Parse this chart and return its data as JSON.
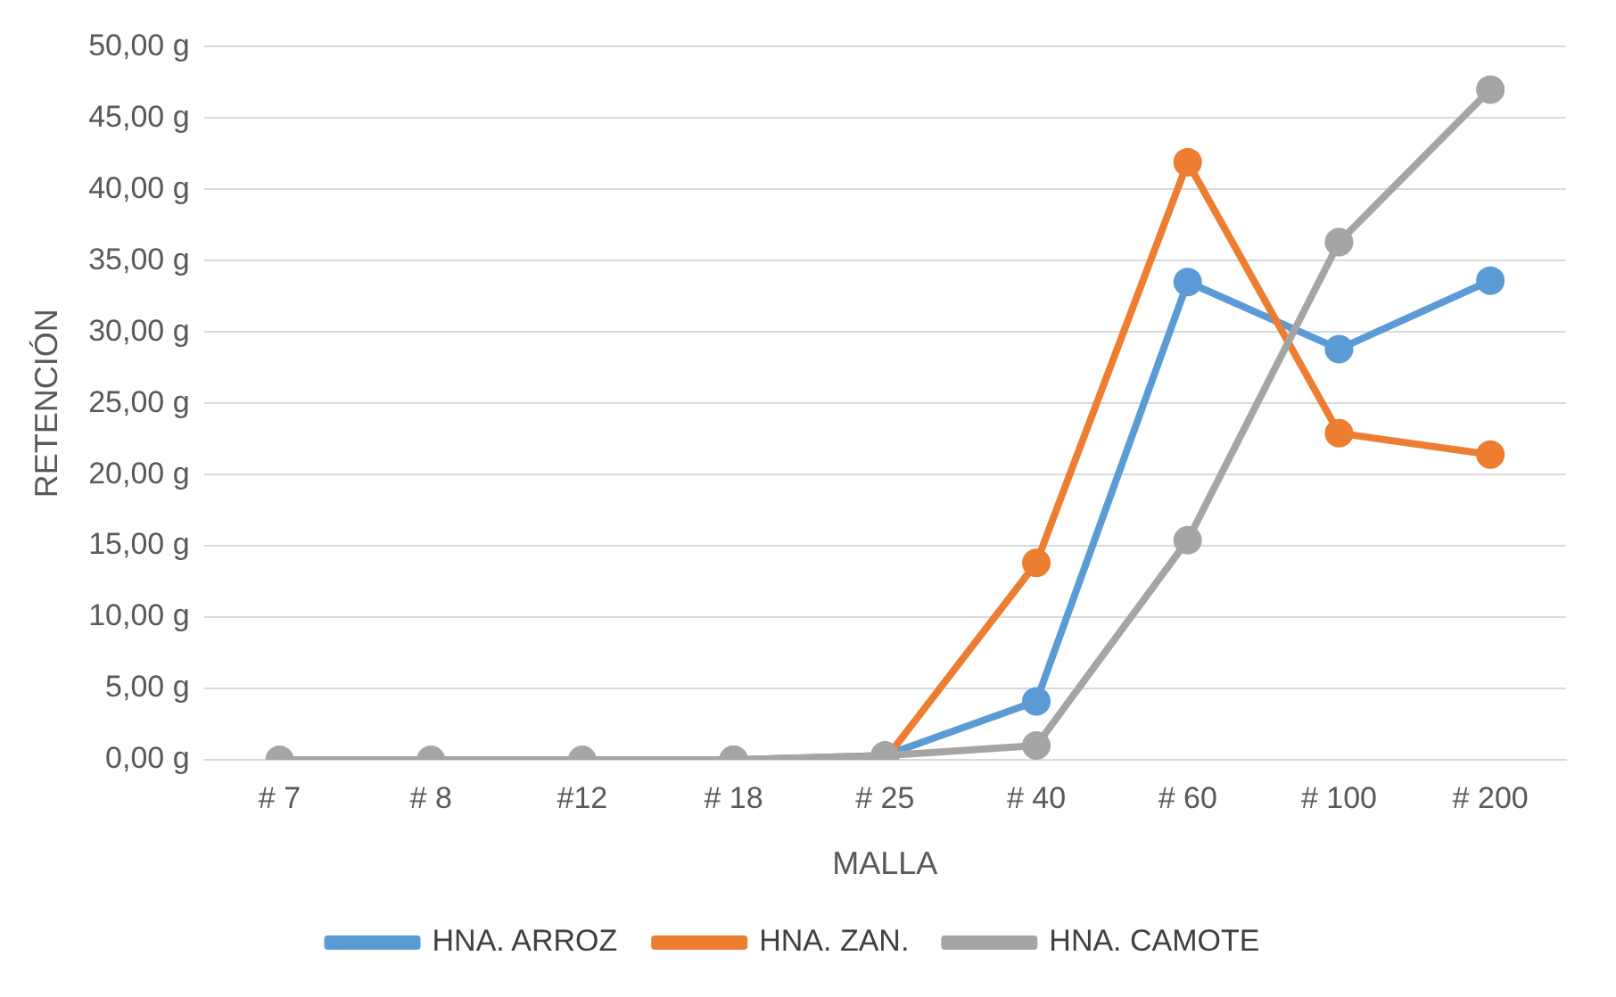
{
  "chart_data": {
    "type": "line",
    "xlabel": "MALLA",
    "ylabel": "RETENCIÓN",
    "categories": [
      "# 7",
      "# 8",
      "#12",
      "# 18",
      "# 25",
      "# 40",
      "# 60",
      "# 100",
      "# 200"
    ],
    "series": [
      {
        "name": "HNA. ARROZ",
        "color": "#5b9bd5",
        "values": [
          null,
          null,
          null,
          0,
          0.3,
          4.1,
          33.5,
          28.8,
          33.6
        ]
      },
      {
        "name": "HNA. ZAN.",
        "color": "#ed7d31",
        "values": [
          null,
          null,
          null,
          0,
          0,
          13.8,
          41.9,
          22.9,
          21.4
        ]
      },
      {
        "name": "HNA. CAMOTE",
        "color": "#a5a5a5",
        "values": [
          0,
          0,
          0,
          0,
          0.3,
          1,
          15.4,
          36.3,
          47
        ]
      }
    ],
    "ylim": [
      0,
      50
    ],
    "yticks": [
      {
        "value": 0,
        "label": "0,00 g"
      },
      {
        "value": 5,
        "label": "5,00 g"
      },
      {
        "value": 10,
        "label": "10,00 g"
      },
      {
        "value": 15,
        "label": "15,00 g"
      },
      {
        "value": 20,
        "label": "20,00 g"
      },
      {
        "value": 25,
        "label": "25,00 g"
      },
      {
        "value": 30,
        "label": "30,00 g"
      },
      {
        "value": 35,
        "label": "35,00 g"
      },
      {
        "value": 40,
        "label": "40,00 g"
      },
      {
        "value": 45,
        "label": "45,00 g"
      },
      {
        "value": 50,
        "label": "50,00 g"
      }
    ],
    "grid": "y",
    "legend": "bottom",
    "marker": "circle",
    "line_style": "solid"
  }
}
